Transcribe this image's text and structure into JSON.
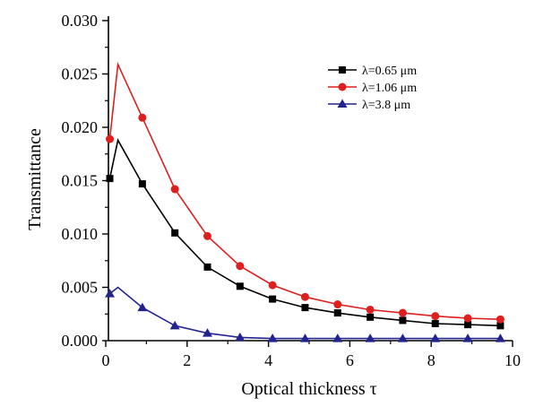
{
  "chart_data": {
    "type": "line",
    "xlabel": "Optical thickness τ",
    "ylabel": "Transmittance",
    "xlim": [
      0,
      10
    ],
    "ylim": [
      0,
      0.03
    ],
    "xticks": [
      "0",
      "2",
      "4",
      "6",
      "8",
      "10"
    ],
    "yticks": [
      "0.000",
      "0.005",
      "0.010",
      "0.015",
      "0.020",
      "0.025",
      "0.030"
    ],
    "grid": false,
    "legend_position": "top-right",
    "series": [
      {
        "name": "λ=0.65 μm",
        "color": "#000000",
        "marker": "square",
        "x": [
          0.1,
          0.3,
          0.9,
          1.7,
          2.5,
          3.3,
          4.1,
          4.9,
          5.7,
          6.5,
          7.3,
          8.1,
          8.9,
          9.7
        ],
        "y": [
          0.0152,
          0.0188,
          0.0147,
          0.0101,
          0.0069,
          0.0051,
          0.0039,
          0.0031,
          0.0026,
          0.0022,
          0.0019,
          0.0016,
          0.0015,
          0.0014
        ],
        "marker_mask": [
          true,
          false,
          true,
          true,
          true,
          true,
          true,
          true,
          true,
          true,
          true,
          true,
          true,
          true
        ]
      },
      {
        "name": "λ=1.06 μm",
        "color": "#dd1f1f",
        "marker": "circle",
        "x": [
          0.1,
          0.3,
          0.9,
          1.7,
          2.5,
          3.3,
          4.1,
          4.9,
          5.7,
          6.5,
          7.3,
          8.1,
          8.9,
          9.7
        ],
        "y": [
          0.0189,
          0.0259,
          0.0209,
          0.0142,
          0.0098,
          0.007,
          0.0052,
          0.0041,
          0.0034,
          0.0029,
          0.0026,
          0.0023,
          0.0021,
          0.002
        ],
        "marker_mask": [
          true,
          false,
          true,
          true,
          true,
          true,
          true,
          true,
          true,
          true,
          true,
          true,
          true,
          true
        ]
      },
      {
        "name": "λ=3.8 μm",
        "color": "#23238f",
        "marker": "triangle",
        "x": [
          0.1,
          0.3,
          0.9,
          1.7,
          2.5,
          3.3,
          4.1,
          4.9,
          5.7,
          6.5,
          7.3,
          8.1,
          8.9,
          9.7
        ],
        "y": [
          0.0044,
          0.005,
          0.0031,
          0.0014,
          0.0007,
          0.0003,
          0.0002,
          0.0002,
          0.0002,
          0.0002,
          0.0002,
          0.0002,
          0.0002,
          0.0002
        ],
        "marker_mask": [
          true,
          false,
          true,
          true,
          true,
          true,
          true,
          true,
          true,
          true,
          true,
          true,
          true,
          true
        ]
      }
    ]
  }
}
